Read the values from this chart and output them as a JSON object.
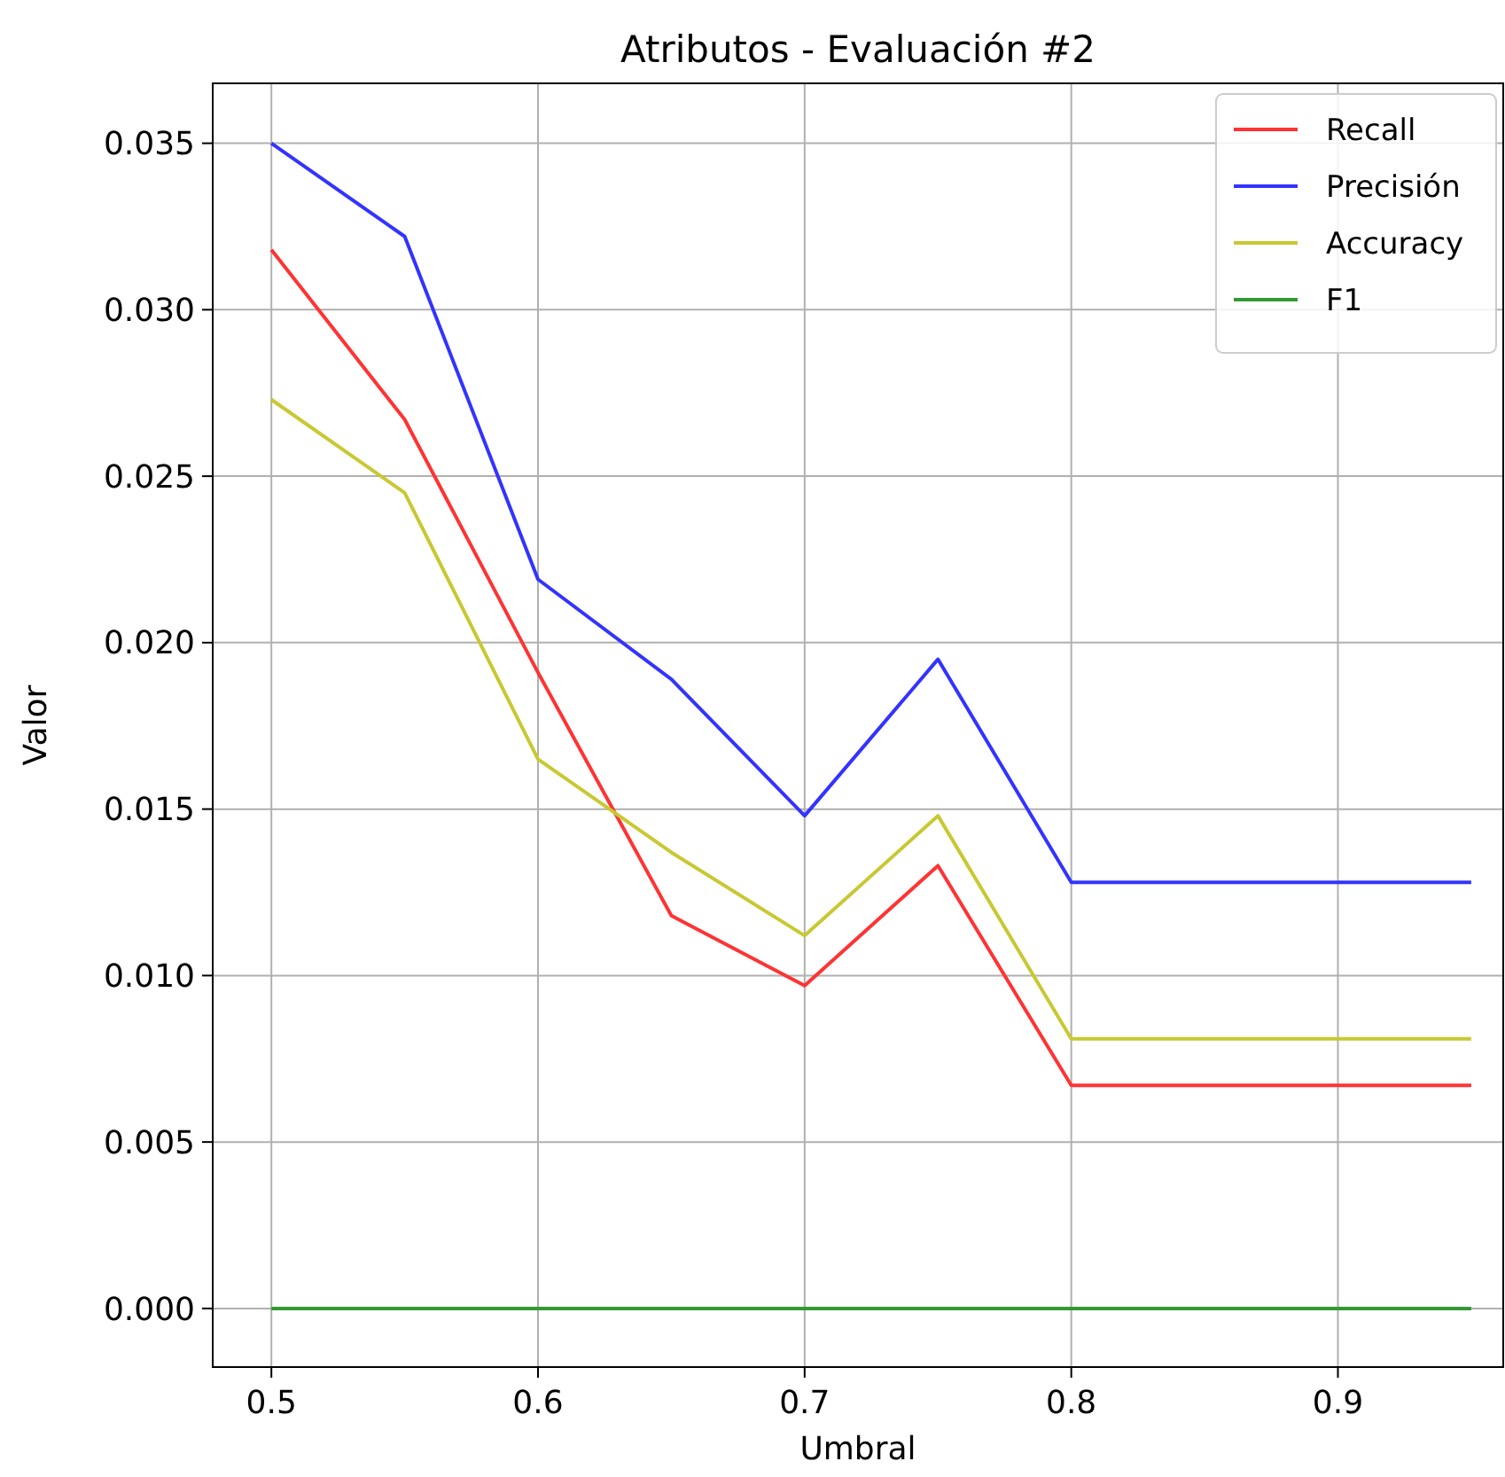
{
  "chart_data": {
    "type": "line",
    "title": "Atributos - Evaluación #2",
    "xlabel": "Umbral",
    "ylabel": "Valor",
    "x": [
      0.5,
      0.55,
      0.6,
      0.65,
      0.7,
      0.75,
      0.8,
      0.85,
      0.9,
      0.95
    ],
    "series": [
      {
        "name": "Recall",
        "color": "#ff3333",
        "values": [
          0.0318,
          0.0267,
          0.0191,
          0.0118,
          0.0097,
          0.0133,
          0.0067,
          0.0067,
          0.0067,
          0.0067
        ]
      },
      {
        "name": "Precisión",
        "color": "#3333ff",
        "values": [
          0.035,
          0.0322,
          0.0219,
          0.0189,
          0.0148,
          0.0195,
          0.0128,
          0.0128,
          0.0128,
          0.0128
        ]
      },
      {
        "name": "Accuracy",
        "color": "#c8c832",
        "values": [
          0.0273,
          0.0245,
          0.0165,
          0.0137,
          0.0112,
          0.0148,
          0.0081,
          0.0081,
          0.0081,
          0.0081
        ]
      },
      {
        "name": "F1",
        "color": "#339933",
        "values": [
          0,
          0,
          0,
          0,
          0,
          0,
          0,
          0,
          0,
          0
        ]
      }
    ],
    "xlim": [
      0.478,
      0.962
    ],
    "ylim": [
      -0.00176,
      0.0368
    ],
    "xticks": [
      0.5,
      0.6,
      0.7,
      0.8,
      0.9
    ],
    "yticks": [
      {
        "value": 0,
        "label": "0.000"
      },
      {
        "value": 0.005,
        "label": "0.005"
      },
      {
        "value": 0.01,
        "label": "0.010"
      },
      {
        "value": 0.015,
        "label": "0.015"
      },
      {
        "value": 0.02,
        "label": "0.020"
      },
      {
        "value": 0.025,
        "label": "0.025"
      },
      {
        "value": 0.03,
        "label": "0.030"
      },
      {
        "value": 0.035,
        "label": "0.035"
      }
    ],
    "grid": true,
    "legend": "top right",
    "line_style": "solid",
    "marker": "none"
  }
}
